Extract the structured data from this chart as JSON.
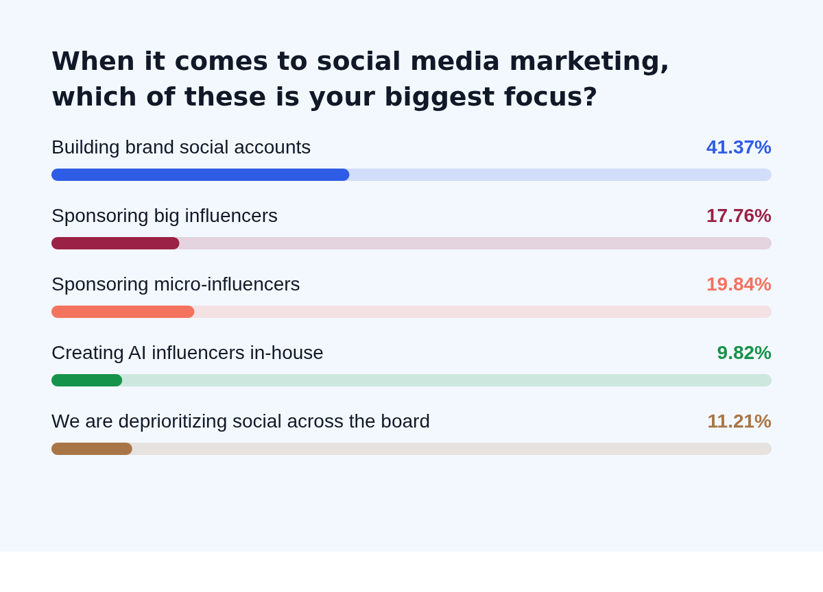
{
  "chart_data": {
    "type": "bar",
    "orientation": "horizontal",
    "title": "When it comes to social media marketing, which of these is your biggest focus?",
    "categories": [
      "Building brand social accounts",
      "Sponsoring big influencers",
      "Sponsoring micro-influencers",
      "Creating AI influencers in-house",
      "We are deprioritizing social across the board"
    ],
    "values": [
      41.37,
      17.76,
      19.84,
      9.82,
      11.21
    ],
    "colors": [
      "#2f5ce5",
      "#9b2246",
      "#f4735f",
      "#16934a",
      "#a87646"
    ],
    "value_labels": [
      "41.37%",
      "17.76%",
      "19.84%",
      "9.82%",
      "11.21%"
    ],
    "xlim": [
      0,
      100
    ]
  }
}
